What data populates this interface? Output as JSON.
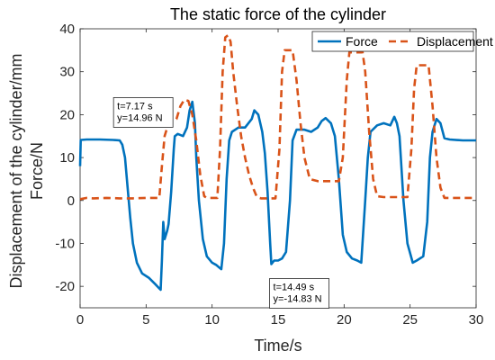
{
  "chart_data": {
    "type": "line",
    "title": "The static force of the cylinder",
    "xlabel": "Time/s",
    "ylabel_lines": [
      "Displacement of the cylinder/mm",
      "Force/N"
    ],
    "xlim": [
      0,
      30
    ],
    "ylim": [
      -25,
      40
    ],
    "xticks": [
      0,
      5,
      10,
      15,
      20,
      25,
      30
    ],
    "yticks": [
      -20,
      -10,
      0,
      10,
      20,
      30,
      40
    ],
    "grid": false,
    "legend_position": "top-right",
    "series": [
      {
        "name": "Force",
        "color": "#0072BD",
        "dash": "solid",
        "points": [
          [
            0,
            8
          ],
          [
            0.05,
            14.1
          ],
          [
            0.5,
            14.2
          ],
          [
            1.5,
            14.2
          ],
          [
            2.5,
            14.1
          ],
          [
            3.0,
            14.0
          ],
          [
            3.2,
            13.0
          ],
          [
            3.4,
            10.0
          ],
          [
            3.6,
            3.0
          ],
          [
            3.8,
            -4.0
          ],
          [
            4.0,
            -10.0
          ],
          [
            4.3,
            -14.5
          ],
          [
            4.7,
            -17.0
          ],
          [
            5.2,
            -18.0
          ],
          [
            5.7,
            -19.5
          ],
          [
            6.0,
            -20.5
          ],
          [
            6.1,
            -20.8
          ],
          [
            6.2,
            -14.0
          ],
          [
            6.3,
            -5.0
          ],
          [
            6.4,
            -9.0
          ],
          [
            6.6,
            -7.0
          ],
          [
            6.7,
            -5.5
          ],
          [
            6.9,
            2.0
          ],
          [
            7.1,
            12.0
          ],
          [
            7.17,
            14.96
          ],
          [
            7.4,
            15.5
          ],
          [
            7.8,
            15.0
          ],
          [
            8.1,
            17.0
          ],
          [
            8.3,
            21.0
          ],
          [
            8.5,
            23.0
          ],
          [
            8.7,
            18.0
          ],
          [
            8.8,
            10.0
          ],
          [
            9.0,
            0.0
          ],
          [
            9.3,
            -9.0
          ],
          [
            9.6,
            -13.0
          ],
          [
            10.0,
            -14.5
          ],
          [
            10.3,
            -15.0
          ],
          [
            10.5,
            -15.5
          ],
          [
            10.7,
            -16.0
          ],
          [
            10.9,
            -10.0
          ],
          [
            11.1,
            5.0
          ],
          [
            11.3,
            14.0
          ],
          [
            11.5,
            16.0
          ],
          [
            12.0,
            17.0
          ],
          [
            12.5,
            17.0
          ],
          [
            13.0,
            19.0
          ],
          [
            13.2,
            21.0
          ],
          [
            13.5,
            20.0
          ],
          [
            13.8,
            16.0
          ],
          [
            14.0,
            11.0
          ],
          [
            14.2,
            2.0
          ],
          [
            14.4,
            -10.0
          ],
          [
            14.49,
            -14.83
          ],
          [
            14.7,
            -14.0
          ],
          [
            15.0,
            -14.0
          ],
          [
            15.3,
            -13.5
          ],
          [
            15.6,
            -12.0
          ],
          [
            15.9,
            0.0
          ],
          [
            16.1,
            14.0
          ],
          [
            16.4,
            16.5
          ],
          [
            17.0,
            16.5
          ],
          [
            17.5,
            16.0
          ],
          [
            18.0,
            17.0
          ],
          [
            18.3,
            18.5
          ],
          [
            18.6,
            19.2
          ],
          [
            19.0,
            18.0
          ],
          [
            19.3,
            15.0
          ],
          [
            19.6,
            5.0
          ],
          [
            19.9,
            -8.0
          ],
          [
            20.2,
            -12.0
          ],
          [
            20.6,
            -13.5
          ],
          [
            21.0,
            -14.0
          ],
          [
            21.3,
            -14.5
          ],
          [
            21.6,
            0.0
          ],
          [
            21.8,
            10.0
          ],
          [
            22.0,
            16.0
          ],
          [
            22.5,
            17.5
          ],
          [
            23.0,
            18.0
          ],
          [
            23.5,
            17.5
          ],
          [
            23.8,
            19.5
          ],
          [
            24.0,
            18.0
          ],
          [
            24.2,
            15.0
          ],
          [
            24.5,
            0.0
          ],
          [
            24.8,
            -10.0
          ],
          [
            25.2,
            -14.5
          ],
          [
            25.5,
            -14.0
          ],
          [
            26.0,
            -13.0
          ],
          [
            26.3,
            -5.0
          ],
          [
            26.5,
            10.0
          ],
          [
            26.7,
            16.0
          ],
          [
            27.0,
            19.0
          ],
          [
            27.3,
            18.0
          ],
          [
            27.6,
            14.5
          ],
          [
            28.0,
            14.2
          ],
          [
            29.0,
            14.0
          ],
          [
            30.0,
            14.0
          ]
        ]
      },
      {
        "name": "Displacement",
        "color": "#D95319",
        "dash": "dashed",
        "points": [
          [
            0,
            0.3
          ],
          [
            0.5,
            0.6
          ],
          [
            1.0,
            0.5
          ],
          [
            2.0,
            0.6
          ],
          [
            3.0,
            0.5
          ],
          [
            4.0,
            0.5
          ],
          [
            5.0,
            0.6
          ],
          [
            6.0,
            0.6
          ],
          [
            6.2,
            8.0
          ],
          [
            6.4,
            15.0
          ],
          [
            6.7,
            18.0
          ],
          [
            7.0,
            18.5
          ],
          [
            7.3,
            19.0
          ],
          [
            7.6,
            22.0
          ],
          [
            7.9,
            23.5
          ],
          [
            8.2,
            23.2
          ],
          [
            8.5,
            20.0
          ],
          [
            8.8,
            14.0
          ],
          [
            9.1,
            6.0
          ],
          [
            9.4,
            1.0
          ],
          [
            9.6,
            0.6
          ],
          [
            10.0,
            0.6
          ],
          [
            10.4,
            0.6
          ],
          [
            10.6,
            12.0
          ],
          [
            10.8,
            30.0
          ],
          [
            11.0,
            38.0
          ],
          [
            11.2,
            38.5
          ],
          [
            11.4,
            37.0
          ],
          [
            11.6,
            30.0
          ],
          [
            11.9,
            22.0
          ],
          [
            12.2,
            15.0
          ],
          [
            12.5,
            10.0
          ],
          [
            12.8,
            6.0
          ],
          [
            13.1,
            3.0
          ],
          [
            13.4,
            0.8
          ],
          [
            13.7,
            0.5
          ],
          [
            14.2,
            0.5
          ],
          [
            14.8,
            0.5
          ],
          [
            15.1,
            12.0
          ],
          [
            15.3,
            30.0
          ],
          [
            15.5,
            35.0
          ],
          [
            16.1,
            35.0
          ],
          [
            16.4,
            28.0
          ],
          [
            16.7,
            18.0
          ],
          [
            17.0,
            10.0
          ],
          [
            17.4,
            5.0
          ],
          [
            18.0,
            4.5
          ],
          [
            19.0,
            4.5
          ],
          [
            19.6,
            4.5
          ],
          [
            19.9,
            10.0
          ],
          [
            20.2,
            28.0
          ],
          [
            20.4,
            34.5
          ],
          [
            21.4,
            34.5
          ],
          [
            21.6,
            30.0
          ],
          [
            21.9,
            16.0
          ],
          [
            22.2,
            5.0
          ],
          [
            22.5,
            1.0
          ],
          [
            23.0,
            0.8
          ],
          [
            24.0,
            0.8
          ],
          [
            24.8,
            0.8
          ],
          [
            25.1,
            12.0
          ],
          [
            25.3,
            26.0
          ],
          [
            25.5,
            31.5
          ],
          [
            26.4,
            31.5
          ],
          [
            26.7,
            22.0
          ],
          [
            27.0,
            10.0
          ],
          [
            27.3,
            3.0
          ],
          [
            27.6,
            0.6
          ],
          [
            28.5,
            0.6
          ],
          [
            29.5,
            0.6
          ],
          [
            30.0,
            0.6
          ]
        ]
      }
    ],
    "annotations": [
      {
        "text_lines": [
          "t=7.17 s",
          "y=14.96 N"
        ],
        "x": 7.17,
        "y": 14.96
      },
      {
        "text_lines": [
          "t=14.49 s",
          "y=-14.83 N"
        ],
        "x": 14.49,
        "y": -14.83
      }
    ]
  }
}
